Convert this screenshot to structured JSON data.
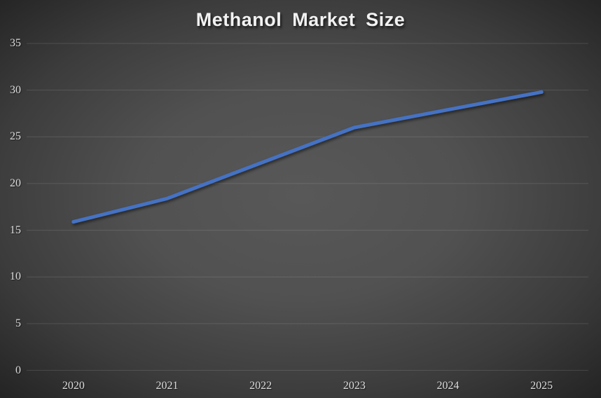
{
  "chart_data": {
    "type": "line",
    "title": "Methanol Market Size",
    "categories": [
      "2020",
      "2021",
      "2022",
      "2023",
      "2024",
      "2025"
    ],
    "series": [
      {
        "name": "Methanol Market Size",
        "values": [
          15.9,
          18.4,
          22.2,
          26.0,
          27.9,
          29.8
        ]
      }
    ],
    "xlabel": "",
    "ylabel": "",
    "ylim": [
      0,
      35
    ],
    "yticks": [
      0,
      5,
      10,
      15,
      20,
      25,
      30,
      35
    ],
    "grid": true,
    "legend_position": "none",
    "colors": {
      "line": "#4472c4",
      "gridline": "rgba(255,255,255,0.12)",
      "label": "#dcdcdc",
      "title": "#f2f2f2",
      "background_center": "#585858",
      "background_edge": "#242424"
    }
  }
}
